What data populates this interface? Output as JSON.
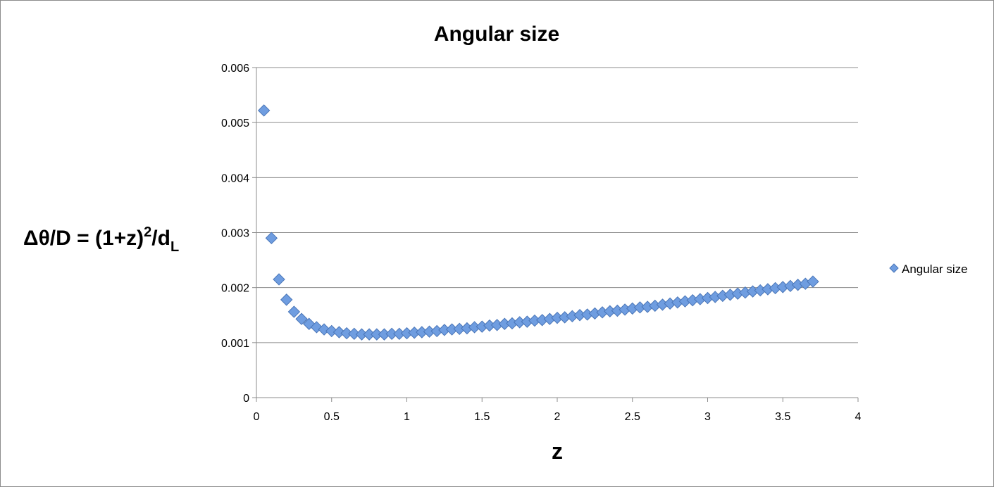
{
  "chart_data": {
    "type": "scatter",
    "title": "Angular size",
    "xlabel": "z",
    "ylabel": {
      "base": "Δθ/D = (1+z)",
      "sup": "2",
      "mid": "/d",
      "sub": "L"
    },
    "xlim": [
      0,
      4
    ],
    "ylim": [
      0,
      0.006
    ],
    "x_ticks": [
      "0",
      "0.5",
      "1",
      "1.5",
      "2",
      "2.5",
      "3",
      "3.5",
      "4"
    ],
    "y_ticks": [
      "0",
      "0.001",
      "0.002",
      "0.003",
      "0.004",
      "0.005",
      "0.006"
    ],
    "grid": true,
    "legend_position": "right",
    "marker_color": "#6f9de0",
    "marker_edge_color": "#4a76b8",
    "series": [
      {
        "name": "Angular size",
        "marker": "diamond",
        "x": [
          0.05,
          0.1,
          0.15,
          0.2,
          0.25,
          0.3,
          0.35,
          0.4,
          0.45,
          0.5,
          0.55,
          0.6,
          0.65,
          0.7,
          0.75,
          0.8,
          0.85,
          0.9,
          0.95,
          1.0,
          1.05,
          1.1,
          1.15,
          1.2,
          1.25,
          1.3,
          1.35,
          1.4,
          1.45,
          1.5,
          1.55,
          1.6,
          1.65,
          1.7,
          1.75,
          1.8,
          1.85,
          1.9,
          1.95,
          2.0,
          2.05,
          2.1,
          2.15,
          2.2,
          2.25,
          2.3,
          2.35,
          2.4,
          2.45,
          2.5,
          2.55,
          2.6,
          2.65,
          2.7,
          2.75,
          2.8,
          2.85,
          2.9,
          2.95,
          3.0,
          3.05,
          3.1,
          3.15,
          3.2,
          3.25,
          3.3,
          3.35,
          3.4,
          3.45,
          3.5,
          3.55,
          3.6,
          3.65,
          3.7
        ],
        "y": [
          0.00522,
          0.0029,
          0.00215,
          0.00178,
          0.00156,
          0.00143,
          0.00134,
          0.00128,
          0.00124,
          0.00121,
          0.00119,
          0.00117,
          0.00116,
          0.00115,
          0.00115,
          0.00115,
          0.00115,
          0.00116,
          0.00116,
          0.00117,
          0.00118,
          0.00119,
          0.0012,
          0.00121,
          0.00123,
          0.00124,
          0.00125,
          0.00126,
          0.00128,
          0.00129,
          0.00131,
          0.00132,
          0.00134,
          0.00135,
          0.00137,
          0.00138,
          0.0014,
          0.00141,
          0.00143,
          0.00145,
          0.00146,
          0.00148,
          0.0015,
          0.00151,
          0.00153,
          0.00155,
          0.00157,
          0.00158,
          0.0016,
          0.00162,
          0.00164,
          0.00165,
          0.00167,
          0.00169,
          0.00171,
          0.00173,
          0.00175,
          0.00177,
          0.00179,
          0.00181,
          0.00183,
          0.00185,
          0.00187,
          0.00189,
          0.00191,
          0.00193,
          0.00195,
          0.00197,
          0.00199,
          0.00201,
          0.00203,
          0.00205,
          0.00207,
          0.00211
        ]
      }
    ]
  }
}
